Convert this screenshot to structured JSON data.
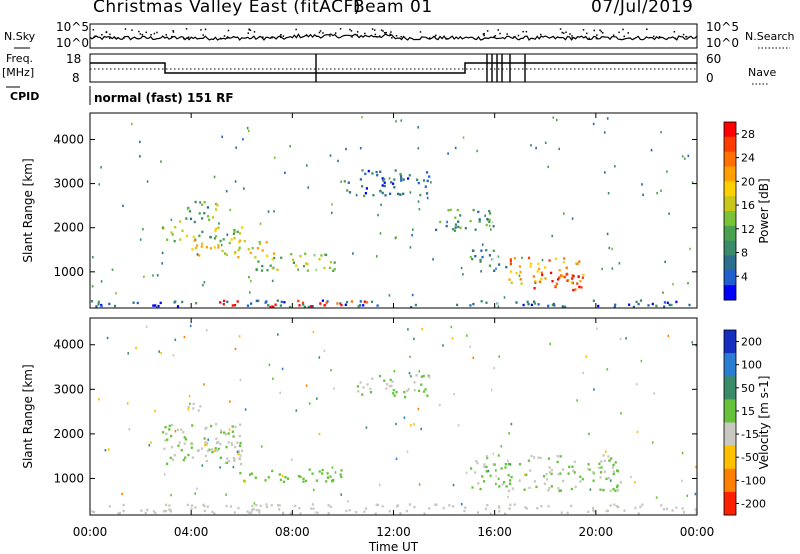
{
  "header": {
    "station": "Christmas Valley East (fitACF)",
    "beam": "Beam 01",
    "date": "07/Jul/2019"
  },
  "left_labels": {
    "nsky": "N.Sky",
    "freq": "Freq.",
    "freq_unit": "[MHz]",
    "cpid": "CPID"
  },
  "right_labels": {
    "nsearch": "N.Search",
    "nave": "Nave"
  },
  "mode_text": "normal (fast) 151 RF",
  "noise_axis": {
    "top": "10^5",
    "bottom": "10^0"
  },
  "freq_axis": {
    "left_top": "18",
    "left_bottom": "8",
    "right_top": "60",
    "right_bottom": "0"
  },
  "chart_data": [
    {
      "type": "heatmap",
      "title": "",
      "xlabel": "Time UT",
      "ylabel": "Slant Range [km]",
      "x_ticks": [
        "00:00",
        "04:00",
        "08:00",
        "12:00",
        "16:00",
        "20:00",
        "00:00"
      ],
      "y_ticks": [
        "1000",
        "2000",
        "3000",
        "4000"
      ],
      "ylim": [
        180,
        4600
      ],
      "xlim": [
        0,
        24
      ],
      "colorbar": {
        "label": "Power [dB]",
        "ticks": [
          "4",
          "8",
          "12",
          "16",
          "20",
          "24",
          "28"
        ],
        "range": [
          0,
          30
        ],
        "colors": [
          "#0000ff",
          "#1f5fd0",
          "#2c6e8e",
          "#3b8a6a",
          "#4aa04e",
          "#7cc238",
          "#c9c818",
          "#ffd000",
          "#ffa000",
          "#ff7000",
          "#ff3c00",
          "#ff0000"
        ]
      },
      "regions": [
        {
          "t0": 2.8,
          "t1": 6.0,
          "r0": 1600,
          "r1": 2000,
          "level": 14
        },
        {
          "t0": 4.0,
          "t1": 7.5,
          "r0": 1300,
          "r1": 1700,
          "level": 18
        },
        {
          "t0": 6.5,
          "t1": 10.0,
          "r0": 1000,
          "r1": 1400,
          "level": 14
        },
        {
          "t0": 3.5,
          "t1": 5.0,
          "r0": 2100,
          "r1": 2600,
          "level": 12
        },
        {
          "t0": 10.0,
          "t1": 13.5,
          "r0": 2700,
          "r1": 3300,
          "level": 6
        },
        {
          "t0": 13.5,
          "t1": 16.0,
          "r0": 1900,
          "r1": 2400,
          "level": 10
        },
        {
          "t0": 15.0,
          "t1": 16.5,
          "r0": 1000,
          "r1": 1500,
          "level": 8
        },
        {
          "t0": 16.5,
          "t1": 19.5,
          "r0": 700,
          "r1": 1300,
          "level": 22
        },
        {
          "t0": 17.5,
          "t1": 19.5,
          "r0": 550,
          "r1": 1000,
          "level": 27
        },
        {
          "t0": 0.0,
          "t1": 24.0,
          "r0": 180,
          "r1": 330,
          "level": 6
        },
        {
          "t0": 5.0,
          "t1": 11.0,
          "r0": 180,
          "r1": 330,
          "level": 28
        }
      ]
    },
    {
      "type": "heatmap",
      "title": "",
      "xlabel": "Time UT",
      "ylabel": "Slant Range [km]",
      "x_ticks": [
        "00:00",
        "04:00",
        "08:00",
        "12:00",
        "16:00",
        "20:00",
        "00:00"
      ],
      "y_ticks": [
        "1000",
        "2000",
        "3000",
        "4000"
      ],
      "ylim": [
        180,
        4600
      ],
      "xlim": [
        0,
        24
      ],
      "colorbar": {
        "label": "Velocity [m s-1]",
        "ticks": [
          "200",
          "100",
          "50",
          "15",
          "-15",
          "-50",
          "-100",
          "-200"
        ],
        "range": [
          -250,
          250
        ],
        "colors": [
          "#1530c0",
          "#2a7dd0",
          "#3b8a6a",
          "#66c23a",
          "#c8c8c0",
          "#ffc000",
          "#ff8000",
          "#ff2000"
        ]
      },
      "regions": [
        {
          "t0": 2.8,
          "t1": 6.0,
          "r0": 1300,
          "r1": 2200,
          "level": 0
        },
        {
          "t0": 4.0,
          "t1": 6.0,
          "r0": 1400,
          "r1": 1800,
          "level": -60
        },
        {
          "t0": 5.5,
          "t1": 10.0,
          "r0": 900,
          "r1": 1200,
          "level": 40
        },
        {
          "t0": 3.5,
          "t1": 4.5,
          "r0": 2500,
          "r1": 2700,
          "level": -60
        },
        {
          "t0": 10.5,
          "t1": 13.5,
          "r0": 2800,
          "r1": 3300,
          "level": 0
        },
        {
          "t0": 15.0,
          "t1": 21.0,
          "r0": 700,
          "r1": 1500,
          "level": 0
        },
        {
          "t0": 0.0,
          "t1": 24.0,
          "r0": 180,
          "r1": 400,
          "level": -40
        }
      ]
    }
  ]
}
